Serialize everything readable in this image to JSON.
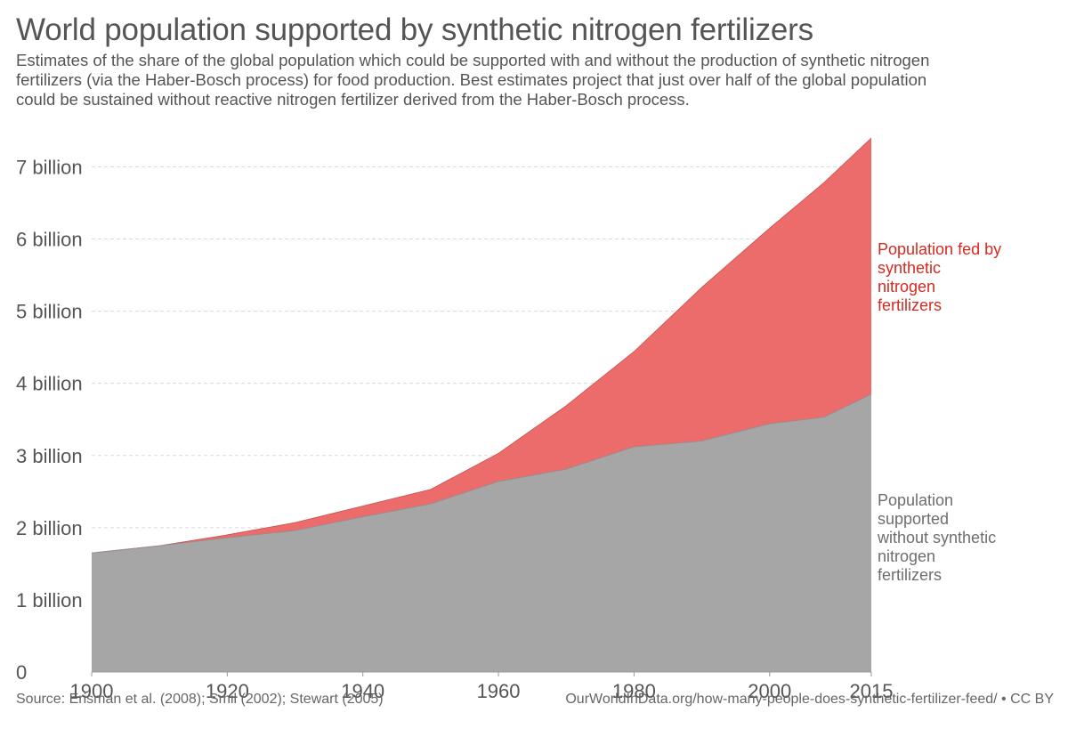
{
  "title": "World population supported by synthetic nitrogen fertilizers",
  "subtitle": "Estimates of the share of the global population which could be supported with and without the production of synthetic nitrogen fertilizers (via the Haber-Bosch process) for food production. Best estimates project that just over half of the global population could be sustained without reactive nitrogen fertilizer derived from the Haber-Bosch process.",
  "source": "Source: Erisman et al. (2008); Smil (2002); Stewart (2005)",
  "url": "OurWorldInData.org/how-many-people-does-synthetic-fertilizer-feed/ • CC BY",
  "chart_data": {
    "type": "area",
    "stacked": true,
    "x": [
      1900,
      1910,
      1920,
      1930,
      1940,
      1950,
      1960,
      1970,
      1980,
      1990,
      2000,
      2008,
      2015
    ],
    "xticks": [
      1900,
      1920,
      1940,
      1960,
      1980,
      2000,
      2015
    ],
    "xlim": [
      1900,
      2015
    ],
    "ylim": [
      0,
      7400000000
    ],
    "yticks": [
      0,
      1000000000,
      2000000000,
      3000000000,
      4000000000,
      5000000000,
      6000000000,
      7000000000
    ],
    "ytick_labels": [
      "0",
      "1 billion",
      "2 billion",
      "3 billion",
      "4 billion",
      "5 billion",
      "6 billion",
      "7 billion"
    ],
    "grid": "horizontal dashed",
    "series": [
      {
        "name": "Population supported without synthetic nitrogen fertilizers",
        "label_lines": [
          "Population",
          "supported",
          "without synthetic",
          "nitrogen",
          "fertilizers"
        ],
        "color": "#a6a6a6",
        "label_color": "#6e6e6e",
        "values": [
          1650000000,
          1750000000,
          1860000000,
          1960000000,
          2150000000,
          2330000000,
          2640000000,
          2810000000,
          3120000000,
          3200000000,
          3440000000,
          3530000000,
          3850000000
        ]
      },
      {
        "name": "Population fed by synthetic nitrogen fertilizers",
        "label_lines": [
          "Population fed by",
          "synthetic",
          "nitrogen",
          "fertilizers"
        ],
        "color": "#ec6c6b",
        "label_color": "#d42b21",
        "values": [
          0,
          0,
          40000000,
          110000000,
          150000000,
          200000000,
          390000000,
          880000000,
          1320000000,
          2130000000,
          2710000000,
          3250000000,
          3550000000
        ]
      }
    ]
  }
}
